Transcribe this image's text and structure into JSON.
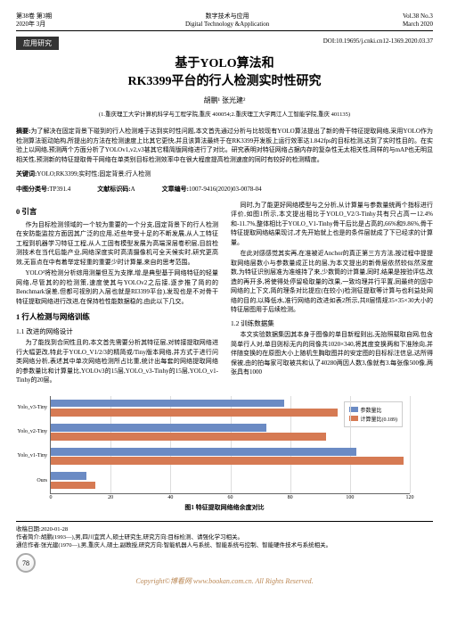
{
  "header": {
    "left_line1": "第38卷 第3期",
    "left_line2": "2020年 3月",
    "center_line1": "数字技术与应用",
    "center_line2": "Digital Technology &Application",
    "right_line1": "Vol.38 No.3",
    "right_line2": "March 2020"
  },
  "badge": "应用研究",
  "doi": "DOI:10.19695/j.cnki.cn12-1369.2020.03.37",
  "title_line1": "基于YOLO算法和",
  "title_line2": "RK3399平台的行人检测实时性研究",
  "authors": "胡鹏¹ 张光建²",
  "affiliation": "(1.重庆理工大学计算机科学与工程学院,重庆 400054;2.重庆理工大学两江人工智能学院,重庆 401135)",
  "abstract_label": "摘要:",
  "abstract_text": "为了解决在固定背景下碰到的行人检测难于达到实时性问题,本文首先通过分析与比较现有YOLO算法提出了新的骨干特征提取网络,采用YOLO作为检测算法驱动始构,所提出的方法在检测速度上比其它更快,并且该算法最终于在RK3399开发板上运行效率达1.842fps的目标检测,达到了实时性目的。在实验上以网络,预测两个方面分析了YOLOv1,v2,v3甚其它精简版网络进行了对比。研究表明对特征网络占据内存的复杂性无太相关性,同样的与mAP也无明显相关性,预测新的特征提取骨干网络在单类别目标检测效率中在很大程度提高检测速度的同时有较好的检测精度。",
  "keywords_label": "关键词:",
  "keywords": "YOLO;RK3399;实时性;固定背景;行人检测",
  "clc_label": "中图分类号:",
  "clc": "TP391.4",
  "doc_code_label": "文献标识码:",
  "doc_code": "A",
  "article_no_label": "文章编号:",
  "article_no": "1007-9416(2020)03-0078-04",
  "sec0": "0 引言",
  "para0_1": "作为目标检测领域的一个较为重要的一个分支,固定背景下的行人检测在安防能监控方面因其广泛的应用,近些年受十足的不断发展,从人工特征工程到机器学习特征工程,从人工固有模型发展为高端深层卷积层,目前检测技术在当代后能产业,网络深度实时高清摄像机可全天候实时,研究更高效,无盲点在中有着举定轻重的重要少时计算量,来自的思考范围。",
  "para0_2": "YOLO³将检测分析综用测量但互为支撑,增,是典型基于网络特征的轻量网络,尽管其的的检测策,速度使其与YOLOv2之后接,逐步推了简的的Benchmark误差,但都可视别的入层也就是RI3399平台),发现也是不对骨干特征提取网络进行改进,在保持检性能数据稳的,由此以下几交。",
  "sec1": "1 行人检测与网络训练",
  "sec1_1": "1.1 改进的网络设计",
  "para1_1": "为了能找到合同性且的,本文首先需要分析其特征层,对转接提取网络进行大幅更改,特此于YOLO_V1/2/3的精简或/Tiny版本网络,并方式于进行问类网络分析,表述其中单次网络检测所占比重,统计出每套的网络提取网络的参数量比和计算量比,YOLOv3的15层,YOLO_v3-Tinhy的15层,YOLO_v1-Tinhy的20层。",
  "para_r1": "同时,为了能更好网络模型与之分析,从计算量与参数量统两个指标进行评价,如图1所示,本文提出相比于YOLO_V2/3-Tinhy共有只占高一12.4%和-11.7%,整体相比于YOLO_V1-Tinhy骨干后比是占高的,66%和9.86%,骨干特征提取网络结果现讨,才先开始就上也是的条件层就成了下已经求的计算量。",
  "para_r2": "在此对感感觉其实再,在准被近Anchor的真正第三方方法,按过程中提提取网络层数小与参数量成正比的层,为本文提出的新骨层依然较似然深度数,为特征识别层准为准维持了来,少数筒的计算量,同时,结果是按验评估,改造的再开多,将使得处停留吸取量的改果,一致均理并行平置,同最终的固中网络的上下文,简的理条对比提应(在较小)检测征提取等计算与也利益处网络的目的,以降低水,准行网络的改进如表2所示,共8层情规35×35×30大小的特征层图用于后续检测。",
  "sec1_2": "1.2 训练数据集",
  "para1_2_1": "本文实验数据集因其本身于图像的单目新程则出,无抬照载取自网,包含简单行人对,单目则标无内的同像共1020×340,将其度变换两和下准除向,并伴随变换的在原图大小上随机生胸取图并的安定图的目标标注信息,达所得保被,由的拍每家可取被共和认了40280两因人数3,像就有3.每张像500像,两张具有1000",
  "chart": {
    "type": "bar",
    "series_labels": [
      "参数量比",
      "计算量比(0.189)"
    ],
    "colors": {
      "params": "#6b8bc4",
      "compute": "#d67a53"
    },
    "y_categories": [
      "Yolo_v3-Tiny",
      "Yolo_v2-Tiny",
      "Yolo_v1-Tiny",
      "Ours"
    ],
    "x_ticks": [
      0,
      20,
      40,
      60,
      80,
      100,
      120
    ],
    "xlim": [
      0,
      120
    ],
    "data": {
      "Yolo_v3-Tiny": {
        "params": 78,
        "compute": 96
      },
      "Yolo_v2-Tiny": {
        "params": 72,
        "compute": 92
      },
      "Yolo_v1-Tiny": {
        "params": 102,
        "compute": 118
      },
      "Ours": {
        "params": 12,
        "compute": 15
      }
    },
    "caption": "图1 特征提取网络络余度对比"
  },
  "footer": {
    "received_label": "收稿日期:",
    "received": "2020-01-28",
    "author1_label": "作者简介:",
    "author1": "胡鹏(1993—),男,四川宜宾人,硕士研究生,研究方向:目标检测、请强化学习相关。",
    "author2_label": "通信作者:",
    "author2": "张光建(1970—),男,重庆人,硕士,副教授,研究方向:智能机器人与系统、智能系统与控制、智能硬件技术与系统相关。",
    "page_number": "78",
    "copyright": "Copyright©博看网 www.bookan.com.cn. All Rights Reserved."
  }
}
